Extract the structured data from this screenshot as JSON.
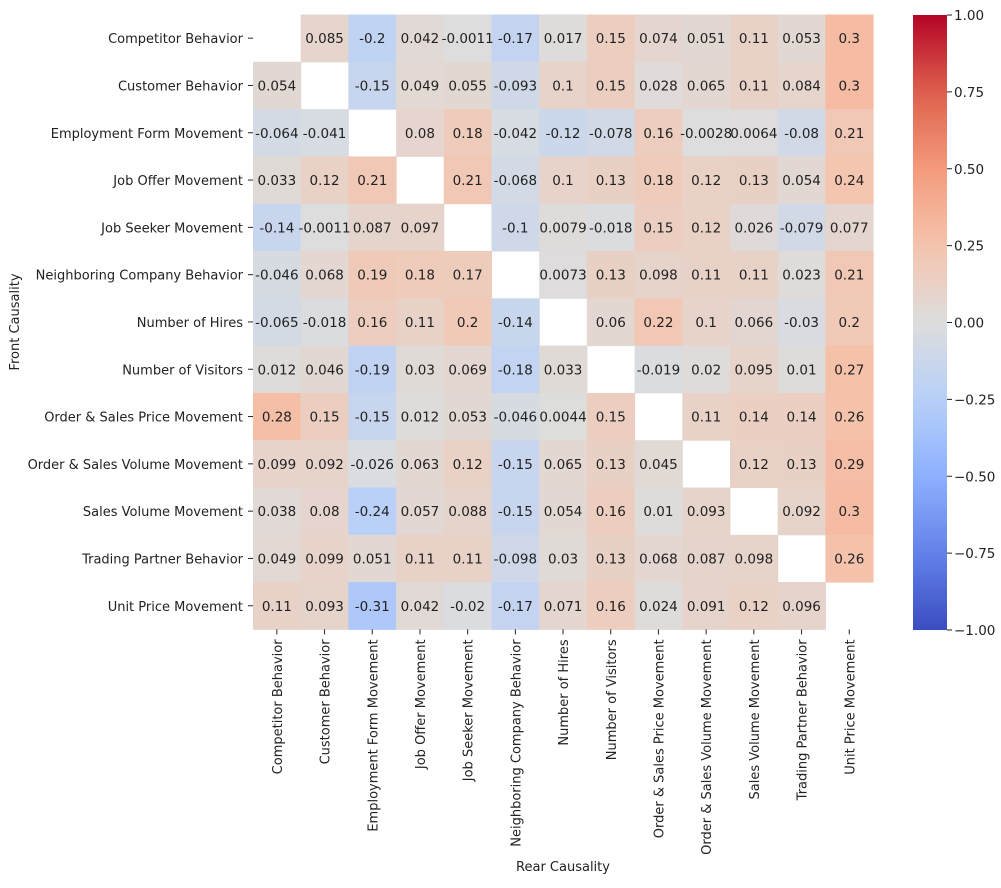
{
  "chart_data": {
    "type": "heatmap",
    "title": "",
    "xlabel": "Rear Causality",
    "ylabel": "Front Causality",
    "categories": [
      "Competitor Behavior",
      "Customer Behavior",
      "Employment Form Movement",
      "Job Offer Movement",
      "Job Seeker Movement",
      "Neighboring Company Behavior",
      "Number of Hires",
      "Number of Visitors",
      "Order & Sales Price Movement",
      "Order & Sales Volume Movement",
      "Sales Volume Movement",
      "Trading Partner Behavior",
      "Unit Price Movement"
    ],
    "values": [
      [
        null,
        0.085,
        -0.2,
        0.042,
        -0.0011,
        -0.17,
        0.017,
        0.15,
        0.074,
        0.051,
        0.11,
        0.053,
        0.3
      ],
      [
        0.054,
        null,
        -0.15,
        0.049,
        0.055,
        -0.093,
        0.1,
        0.15,
        0.028,
        0.065,
        0.11,
        0.084,
        0.3
      ],
      [
        -0.064,
        -0.041,
        null,
        0.08,
        0.18,
        -0.042,
        -0.12,
        -0.078,
        0.16,
        -0.0028,
        0.0064,
        -0.08,
        0.21
      ],
      [
        0.033,
        0.12,
        0.21,
        null,
        0.21,
        -0.068,
        0.1,
        0.13,
        0.18,
        0.12,
        0.13,
        0.054,
        0.24
      ],
      [
        -0.14,
        -0.0011,
        0.087,
        0.097,
        null,
        -0.1,
        0.0079,
        -0.018,
        0.15,
        0.12,
        0.026,
        -0.079,
        0.077
      ],
      [
        -0.046,
        0.068,
        0.19,
        0.18,
        0.17,
        null,
        0.0073,
        0.13,
        0.098,
        0.11,
        0.11,
        0.023,
        0.21
      ],
      [
        -0.065,
        -0.018,
        0.16,
        0.11,
        0.2,
        -0.14,
        null,
        0.06,
        0.22,
        0.1,
        0.066,
        -0.03,
        0.2
      ],
      [
        0.012,
        0.046,
        -0.19,
        0.03,
        0.069,
        -0.18,
        0.033,
        null,
        -0.019,
        0.02,
        0.095,
        0.01,
        0.27
      ],
      [
        0.28,
        0.15,
        -0.15,
        0.012,
        0.053,
        -0.046,
        0.0044,
        0.15,
        null,
        0.11,
        0.14,
        0.14,
        0.26
      ],
      [
        0.099,
        0.092,
        -0.026,
        0.063,
        0.12,
        -0.15,
        0.065,
        0.13,
        0.045,
        null,
        0.12,
        0.13,
        0.29
      ],
      [
        0.038,
        0.08,
        -0.24,
        0.057,
        0.088,
        -0.15,
        0.054,
        0.16,
        0.01,
        0.093,
        null,
        0.092,
        0.3
      ],
      [
        0.049,
        0.099,
        0.051,
        0.11,
        0.11,
        -0.098,
        0.03,
        0.13,
        0.068,
        0.087,
        0.098,
        null,
        0.26
      ],
      [
        0.11,
        0.093,
        -0.31,
        0.042,
        -0.02,
        -0.17,
        0.071,
        0.16,
        0.024,
        0.091,
        0.12,
        0.096,
        null
      ]
    ],
    "labels": [
      [
        "",
        "0.085",
        "-0.2",
        "0.042",
        "-0.0011",
        "-0.17",
        "0.017",
        "0.15",
        "0.074",
        "0.051",
        "0.11",
        "0.053",
        "0.3"
      ],
      [
        "0.054",
        "",
        "-0.15",
        "0.049",
        "0.055",
        "-0.093",
        "0.1",
        "0.15",
        "0.028",
        "0.065",
        "0.11",
        "0.084",
        "0.3"
      ],
      [
        "-0.064",
        "-0.041",
        "",
        "0.08",
        "0.18",
        "-0.042",
        "-0.12",
        "-0.078",
        "0.16",
        "-0.0028",
        "0.0064",
        "-0.08",
        "0.21"
      ],
      [
        "0.033",
        "0.12",
        "0.21",
        "",
        "0.21",
        "-0.068",
        "0.1",
        "0.13",
        "0.18",
        "0.12",
        "0.13",
        "0.054",
        "0.24"
      ],
      [
        "-0.14",
        "-0.0011",
        "0.087",
        "0.097",
        "",
        "-0.1",
        "0.0079",
        "-0.018",
        "0.15",
        "0.12",
        "0.026",
        "-0.079",
        "0.077"
      ],
      [
        "-0.046",
        "0.068",
        "0.19",
        "0.18",
        "0.17",
        "",
        "0.0073",
        "0.13",
        "0.098",
        "0.11",
        "0.11",
        "0.023",
        "0.21"
      ],
      [
        "-0.065",
        "-0.018",
        "0.16",
        "0.11",
        "0.2",
        "-0.14",
        "",
        "0.06",
        "0.22",
        "0.1",
        "0.066",
        "-0.03",
        "0.2"
      ],
      [
        "0.012",
        "0.046",
        "-0.19",
        "0.03",
        "0.069",
        "-0.18",
        "0.033",
        "",
        "-0.019",
        "0.02",
        "0.095",
        "0.01",
        "0.27"
      ],
      [
        "0.28",
        "0.15",
        "-0.15",
        "0.012",
        "0.053",
        "-0.046",
        "0.0044",
        "0.15",
        "",
        "0.11",
        "0.14",
        "0.14",
        "0.26"
      ],
      [
        "0.099",
        "0.092",
        "-0.026",
        "0.063",
        "0.12",
        "-0.15",
        "0.065",
        "0.13",
        "0.045",
        "",
        "0.12",
        "0.13",
        "0.29"
      ],
      [
        "0.038",
        "0.08",
        "-0.24",
        "0.057",
        "0.088",
        "-0.15",
        "0.054",
        "0.16",
        "0.01",
        "0.093",
        "",
        "0.092",
        "0.3"
      ],
      [
        "0.049",
        "0.099",
        "0.051",
        "0.11",
        "0.11",
        "-0.098",
        "0.03",
        "0.13",
        "0.068",
        "0.087",
        "0.098",
        "",
        "0.26"
      ],
      [
        "0.11",
        "0.093",
        "-0.31",
        "0.042",
        "-0.02",
        "-0.17",
        "0.071",
        "0.16",
        "0.024",
        "0.091",
        "0.12",
        "0.096",
        ""
      ]
    ],
    "colorbar": {
      "range": [
        -1.0,
        1.0
      ],
      "ticks": [
        1.0,
        0.75,
        0.5,
        0.25,
        0.0,
        -0.25,
        -0.5,
        -0.75,
        -1.0
      ],
      "tick_labels": [
        "1.00",
        "0.75",
        "0.50",
        "0.25",
        "0.00",
        "−0.25",
        "−0.50",
        "−0.75",
        "−1.00"
      ],
      "colormap": "coolwarm",
      "low_color": "#3b4cc0",
      "mid_color": "#dddddd",
      "high_color": "#b40426"
    },
    "grid": false,
    "legend": "colorbar-right"
  }
}
